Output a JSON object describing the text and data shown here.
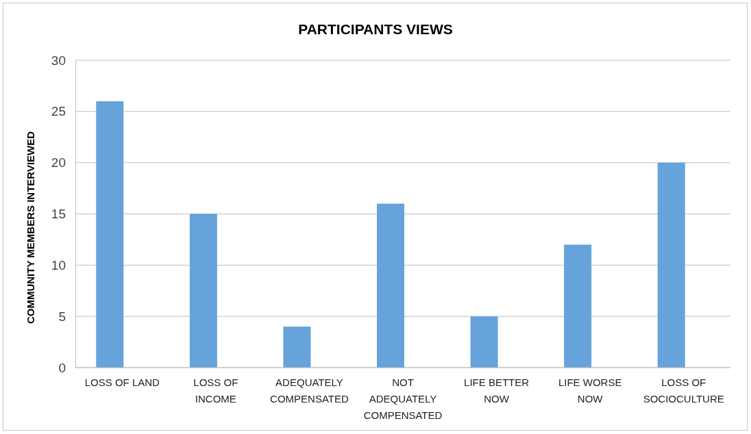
{
  "chart_data": {
    "type": "bar",
    "title": "PARTICIPANTS VIEWS",
    "ylabel": "COMMUNITY MEMBERS INTERVIEWED",
    "categories": [
      "LOSS OF LAND",
      "LOSS OF INCOME",
      "ADEQUATELY COMPENSATED",
      "NOT ADEQUATELY COMPENSATED",
      "LIFE BETTER NOW",
      "LIFE WORSE NOW",
      "LOSS OF SOCIOCULTURE"
    ],
    "values": [
      26,
      15,
      4,
      16,
      5,
      12,
      20
    ],
    "color": "#65a3da",
    "ylim": [
      0,
      30
    ],
    "yticks": [
      0,
      5,
      10,
      15,
      20,
      25,
      30
    ],
    "grid": "y"
  }
}
